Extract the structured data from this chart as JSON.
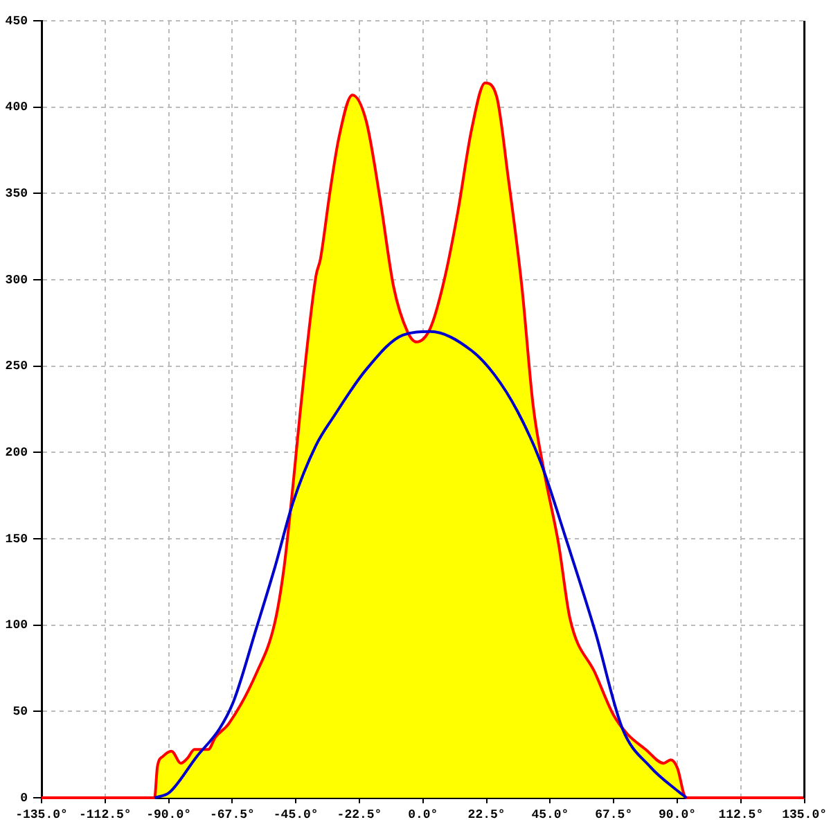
{
  "chart_data": {
    "type": "area",
    "xlim": [
      -135,
      135
    ],
    "ylim": [
      0,
      450
    ],
    "xticks": [
      {
        "value": -135,
        "label": "-135.0°"
      },
      {
        "value": -112.5,
        "label": "-112.5°"
      },
      {
        "value": -90,
        "label": "-90.0°"
      },
      {
        "value": -67.5,
        "label": "-67.5°"
      },
      {
        "value": -45,
        "label": "-45.0°"
      },
      {
        "value": -22.5,
        "label": "-22.5°"
      },
      {
        "value": 0,
        "label": "0.0°"
      },
      {
        "value": 22.5,
        "label": "22.5°"
      },
      {
        "value": 45,
        "label": "45.0°"
      },
      {
        "value": 67.5,
        "label": "67.5°"
      },
      {
        "value": 90,
        "label": "90.0°"
      },
      {
        "value": 112.5,
        "label": "112.5°"
      },
      {
        "value": 135,
        "label": "135.0°"
      }
    ],
    "yticks": [
      0,
      50,
      100,
      150,
      200,
      250,
      300,
      350,
      400,
      450
    ],
    "grid": true,
    "legend": false,
    "marker": "none",
    "line_style": "solid",
    "series": [
      {
        "type": "line",
        "color": "#0000cc",
        "x": [
          -95,
          -89.8,
          -80,
          -72,
          -67,
          -59,
          -52.5,
          -46,
          -37.9,
          -31.5,
          -20.1,
          -7.1,
          2.6,
          17.2,
          25.3,
          33.4,
          41.5,
          51.2,
          61,
          70.6,
          80.4,
          90.1,
          93.3
        ],
        "values": [
          0,
          3,
          24,
          40,
          56,
          98,
          133,
          171,
          204,
          221,
          248,
          268,
          270,
          259,
          245,
          224,
          195,
          147,
          96,
          40,
          18,
          4,
          0
        ]
      },
      {
        "type": "line",
        "color": "#ff0000",
        "x": [
          -135,
          -95,
          -94,
          -92,
          -89,
          -85.7,
          -83.3,
          -80.9,
          -76,
          -73.5,
          -68.7,
          -59,
          -52.5,
          -49.2,
          -46,
          -43.6,
          -37.9,
          -36.3,
          -33,
          -29.8,
          -25,
          -20.1,
          -15.2,
          -10.4,
          -5.5,
          -2.3,
          2.6,
          7.4,
          12.3,
          17.2,
          22,
          26.1,
          30.1,
          35,
          39,
          43.1,
          48,
          52,
          61,
          67.4,
          72.3,
          78.8,
          85.2,
          87.7,
          90.1,
          92.6,
          93.5,
          135
        ],
        "values": [
          0,
          0,
          18,
          24,
          27,
          20,
          23,
          28,
          28,
          35,
          43,
          72,
          101,
          133,
          181,
          221,
          302,
          312,
          350,
          382,
          407,
          392,
          347,
          296,
          270,
          264,
          272,
          299,
          339,
          387,
          414,
          406,
          360,
          296,
          227,
          187,
          147,
          104,
          72,
          48,
          37,
          28,
          20,
          22,
          17,
          1,
          0,
          0
        ]
      },
      {
        "color": "#ffff00",
        "x": [
          -95,
          -94,
          -92,
          -89,
          -85.7,
          -83.3,
          -80.9,
          -76,
          -73.5,
          -68.7,
          -59,
          -52.5,
          -49.2,
          -46,
          -43.6,
          -37.9,
          -36.3,
          -33,
          -29.8,
          -25,
          -20.1,
          -15.2,
          -10.4,
          -5.5,
          -2.3,
          2.6,
          7.4,
          12.3,
          17.2,
          22,
          26.1,
          30.1,
          35,
          39,
          43.1,
          48,
          52,
          61,
          67.4,
          72.3,
          78.8,
          85.2,
          87.7,
          90.1,
          92.6,
          93.5
        ],
        "values": [
          0,
          18,
          24,
          27,
          20,
          23,
          28,
          28,
          35,
          43,
          72,
          101,
          133,
          181,
          221,
          302,
          312,
          350,
          382,
          407,
          392,
          347,
          296,
          270,
          264,
          272,
          299,
          339,
          387,
          414,
          406,
          360,
          296,
          227,
          187,
          147,
          104,
          72,
          48,
          37,
          28,
          20,
          22,
          17,
          1,
          0
        ]
      }
    ]
  }
}
